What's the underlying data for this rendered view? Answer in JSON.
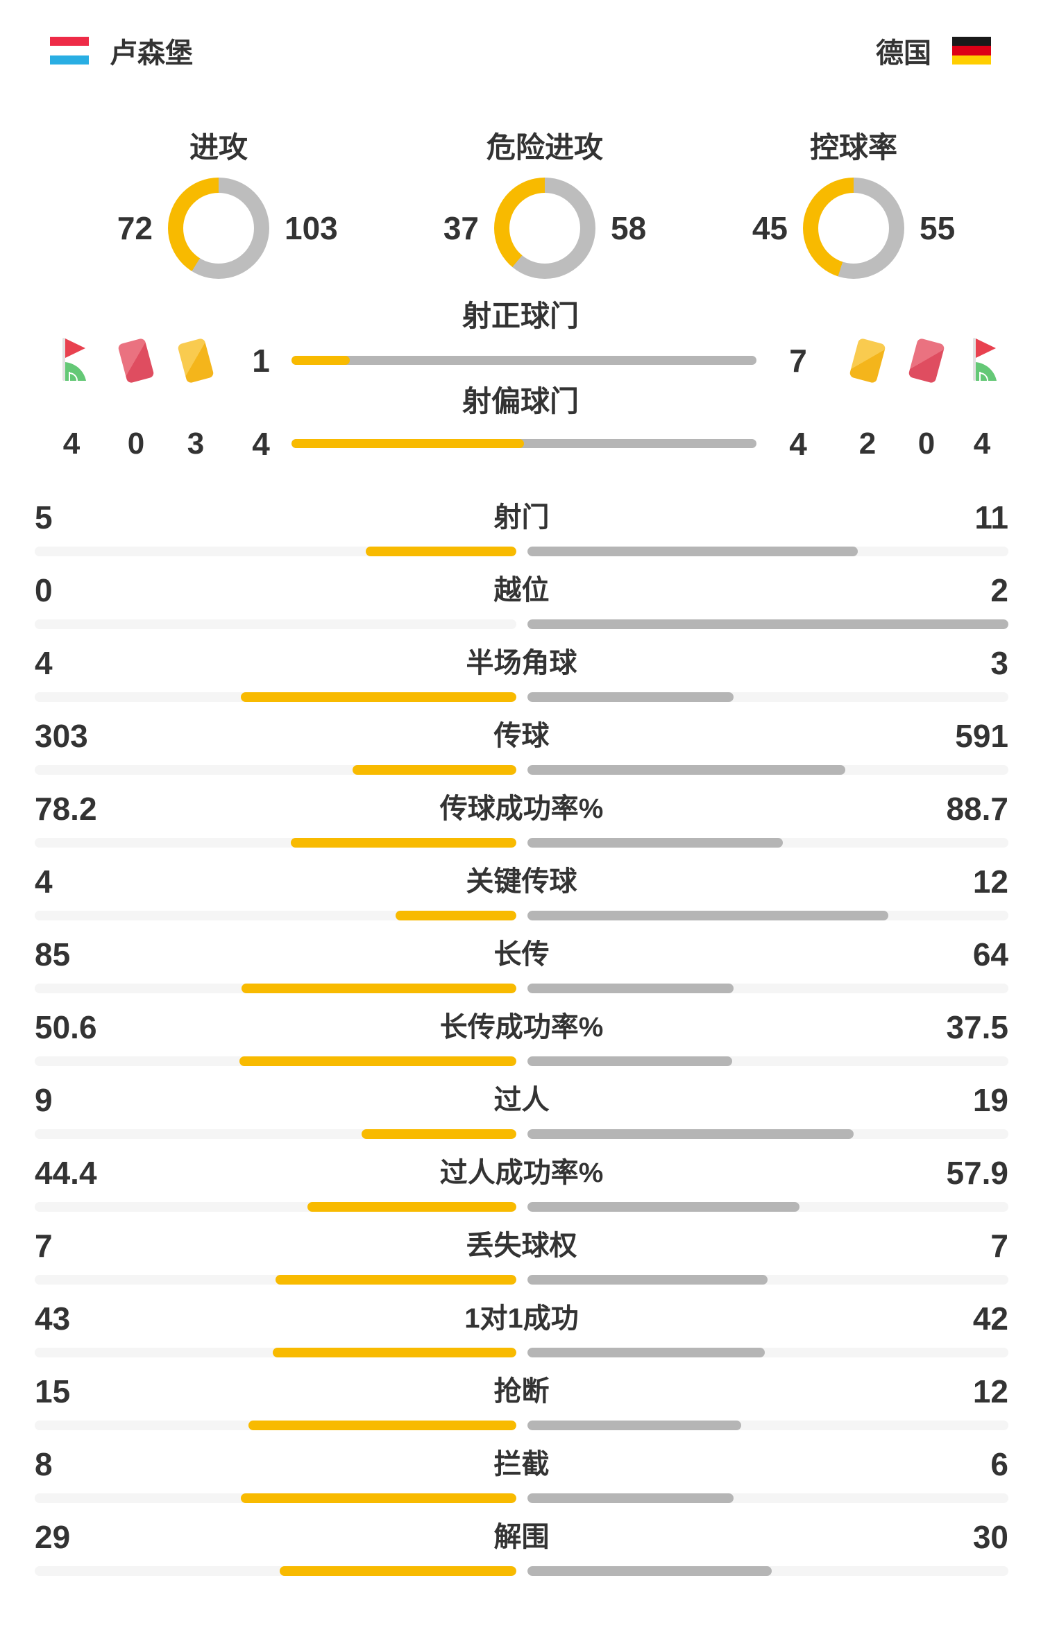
{
  "colors": {
    "amber": "#F8BA00",
    "bar_gray": "#B5B5B5",
    "donut_gray": "#BDBDBD",
    "track": "#F5F5F5",
    "text": "#333333",
    "lux_flag": [
      "#EE2B47",
      "#FFFFFF",
      "#29AEE3"
    ],
    "ger_flag": [
      "#1A1A1A",
      "#DD0016",
      "#FFCE00"
    ]
  },
  "header": {
    "home_name": "卢森堡",
    "away_name": "德国"
  },
  "donuts": [
    {
      "label": "进攻",
      "home": 72,
      "away": 103
    },
    {
      "label": "危险进攻",
      "home": 37,
      "away": 58
    },
    {
      "label": "控球率",
      "home": 45,
      "away": 55
    }
  ],
  "shots": [
    {
      "label": "射正球门",
      "home": 1,
      "away": 7
    },
    {
      "label": "射偏球门",
      "home": 4,
      "away": 4
    }
  ],
  "discipline": {
    "home": {
      "corner": 4,
      "red": 0,
      "yellow": 3
    },
    "away": {
      "yellow": 2,
      "red": 0,
      "corner": 4
    }
  },
  "stats": [
    {
      "label": "射门",
      "home": 5,
      "away": 11
    },
    {
      "label": "越位",
      "home": 0,
      "away": 2
    },
    {
      "label": "半场角球",
      "home": 4,
      "away": 3
    },
    {
      "label": "传球",
      "home": 303,
      "away": 591
    },
    {
      "label": "传球成功率%",
      "home": 78.2,
      "away": 88.7
    },
    {
      "label": "关键传球",
      "home": 4,
      "away": 12
    },
    {
      "label": "长传",
      "home": 85,
      "away": 64
    },
    {
      "label": "长传成功率%",
      "home": 50.6,
      "away": 37.5
    },
    {
      "label": "过人",
      "home": 9,
      "away": 19
    },
    {
      "label": "过人成功率%",
      "home": 44.4,
      "away": 57.9
    },
    {
      "label": "丢失球权",
      "home": 7,
      "away": 7
    },
    {
      "label": "1对1成功",
      "home": 43,
      "away": 42
    },
    {
      "label": "抢断",
      "home": 15,
      "away": 12
    },
    {
      "label": "拦截",
      "home": 8,
      "away": 6
    },
    {
      "label": "解围",
      "home": 29,
      "away": 30
    }
  ],
  "chart_data": {
    "type": "bar",
    "title": "卢森堡 vs 德国 比赛数据统计",
    "teams": [
      "卢森堡",
      "德国"
    ],
    "legend_position": "none",
    "donut_charts": [
      {
        "label": "进攻",
        "values": [
          72,
          103
        ]
      },
      {
        "label": "危险进攻",
        "values": [
          37,
          58
        ]
      },
      {
        "label": "控球率",
        "values": [
          45,
          55
        ]
      }
    ],
    "categories": [
      "射正球门",
      "射偏球门",
      "射门",
      "越位",
      "半场角球",
      "传球",
      "传球成功率%",
      "关键传球",
      "长传",
      "长传成功率%",
      "过人",
      "过人成功率%",
      "丢失球权",
      "1对1成功",
      "抢断",
      "拦截",
      "解围"
    ],
    "series": [
      {
        "name": "卢森堡",
        "values": [
          1,
          4,
          5,
          0,
          4,
          303,
          78.2,
          4,
          85,
          50.6,
          9,
          44.4,
          7,
          43,
          15,
          8,
          29
        ]
      },
      {
        "name": "德国",
        "values": [
          7,
          4,
          11,
          2,
          3,
          591,
          88.7,
          12,
          64,
          37.5,
          19,
          57.9,
          7,
          42,
          12,
          6,
          30
        ]
      }
    ],
    "cards": {
      "卢森堡": {
        "corner_flags": 4,
        "red_cards": 0,
        "yellow_cards": 3
      },
      "德国": {
        "yellow_cards": 2,
        "red_cards": 0,
        "corner_flags": 4
      }
    }
  }
}
